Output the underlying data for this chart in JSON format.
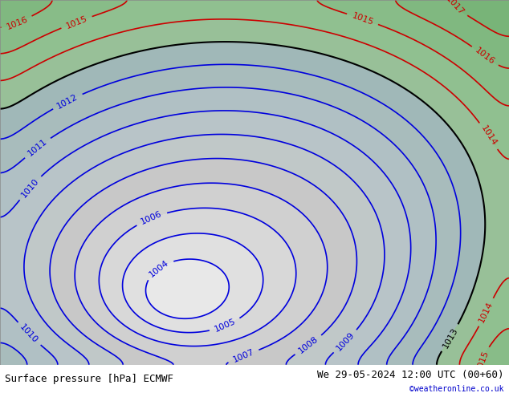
{
  "title_left": "Surface pressure [hPa] ECMWF",
  "title_right": "We 29-05-2024 12:00 UTC (00+60)",
  "credit": "©weatheronline.co.uk",
  "credit_color": "#0000cc",
  "bg_color": "#aad4aa",
  "water_color": "#c8d8e8",
  "land_color": "#90c890",
  "fig_bg": "#d0e8d0",
  "contour_levels_blue": [
    1004,
    1005,
    1006,
    1007,
    1008,
    1009,
    1010,
    1011,
    1012
  ],
  "contour_levels_black": [
    1013
  ],
  "contour_levels_red": [
    1014,
    1015,
    1016,
    1017
  ],
  "blue_color": "#0000dd",
  "black_color": "#000000",
  "red_color": "#cc0000",
  "label_fontsize": 8,
  "footer_fontsize": 9,
  "footer_bg": "#ffffff"
}
